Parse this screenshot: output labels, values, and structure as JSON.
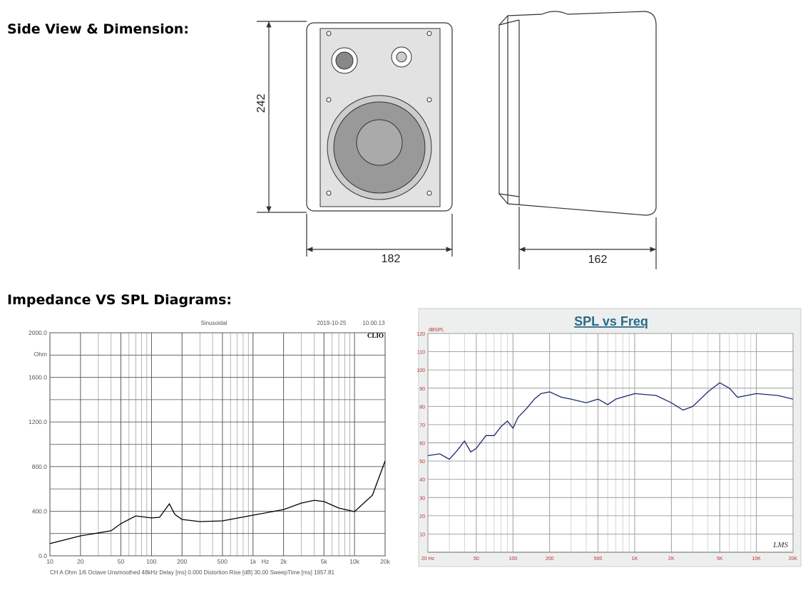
{
  "header": {
    "side_title": "Side View & Dimension:",
    "diagram_title": "Impedance VS SPL Diagrams:"
  },
  "dimensions": {
    "height": 242,
    "width": 182,
    "depth": 162
  },
  "chart_data": [
    {
      "type": "line",
      "mode": "Sinusoidal",
      "date": "2019-10-25",
      "time": "10.00.13",
      "brand": "CLIO",
      "y_unit": "Ohm",
      "x_unit": "Hz",
      "footer": "CH A   Ohm   1/6 Octave   Unsmoothed   48kHz   Delay [ms] 0.000   Distortion Rise [dB] 30.00   SweepTime [ms] 1957.81",
      "x_log": true,
      "grid": true,
      "minor_grid": true,
      "xlim": [
        10,
        20000
      ],
      "xticks": [
        10,
        20,
        50,
        100,
        200,
        500,
        {
          "value": 1000,
          "label": "1k"
        },
        {
          "value": 2000,
          "label": "2k"
        },
        {
          "value": 5000,
          "label": "5k"
        },
        {
          "value": 10000,
          "label": "10k"
        },
        {
          "value": 20000,
          "label": "20k"
        }
      ],
      "ylim": [
        0,
        2000
      ],
      "yticks": [
        {
          "value": 0,
          "label": "0.0"
        },
        {
          "value": 400,
          "label": "400.0"
        },
        {
          "value": 800,
          "label": "800.0"
        },
        {
          "value": 1200,
          "label": "1200.0"
        },
        {
          "value": 1600,
          "label": "1600.0"
        },
        {
          "value": 2000,
          "label": "2000.0"
        }
      ],
      "minor_yticks": [
        200,
        600,
        1000,
        1400,
        1800
      ],
      "x": [
        10,
        20,
        40,
        50,
        70,
        100,
        120,
        150,
        170,
        200,
        300,
        500,
        1000,
        2000,
        3000,
        4000,
        5000,
        7000,
        10000,
        15000,
        20000
      ],
      "series": [
        {
          "color": "#000000",
          "values": [
            109,
            179,
            224,
            288,
            358,
            339,
            345,
            466,
            371,
            326,
            307,
            313,
            364,
            415,
            473,
            498,
            486,
            428,
            396,
            543,
            850
          ]
        }
      ]
    },
    {
      "type": "line",
      "title": "SPL vs Freq",
      "y_unit": "dBSPL",
      "watermark": "LMS",
      "x_log": true,
      "grid": true,
      "minor_grid": true,
      "xlim": [
        20,
        20000
      ],
      "xticks": [
        {
          "value": 20,
          "label": "20 Hz"
        },
        50,
        100,
        200,
        500,
        {
          "value": 1000,
          "label": "1K"
        },
        {
          "value": 2000,
          "label": "2K"
        },
        {
          "value": 5000,
          "label": "5K"
        },
        {
          "value": 10000,
          "label": "10K"
        },
        {
          "value": 20000,
          "label": "20K"
        }
      ],
      "ylim": [
        0,
        120
      ],
      "yticks": [
        10,
        20,
        30,
        40,
        50,
        60,
        70,
        80,
        90,
        100,
        110,
        120
      ],
      "x": [
        20,
        25,
        30,
        35,
        40,
        45,
        50,
        60,
        70,
        80,
        90,
        100,
        110,
        130,
        150,
        170,
        200,
        250,
        300,
        400,
        500,
        600,
        700,
        1000,
        1500,
        2000,
        2500,
        3000,
        4000,
        5000,
        6000,
        7000,
        10000,
        15000,
        20000
      ],
      "series": [
        {
          "color": "#1a2a6c",
          "values": [
            53,
            54,
            51,
            56,
            61,
            55,
            57,
            64,
            64,
            69,
            72,
            68,
            74,
            79,
            84,
            87,
            88,
            85,
            84,
            82,
            84,
            81,
            84,
            87,
            86,
            82,
            78,
            80,
            88,
            93,
            90,
            85,
            87,
            86,
            84
          ]
        }
      ]
    }
  ]
}
